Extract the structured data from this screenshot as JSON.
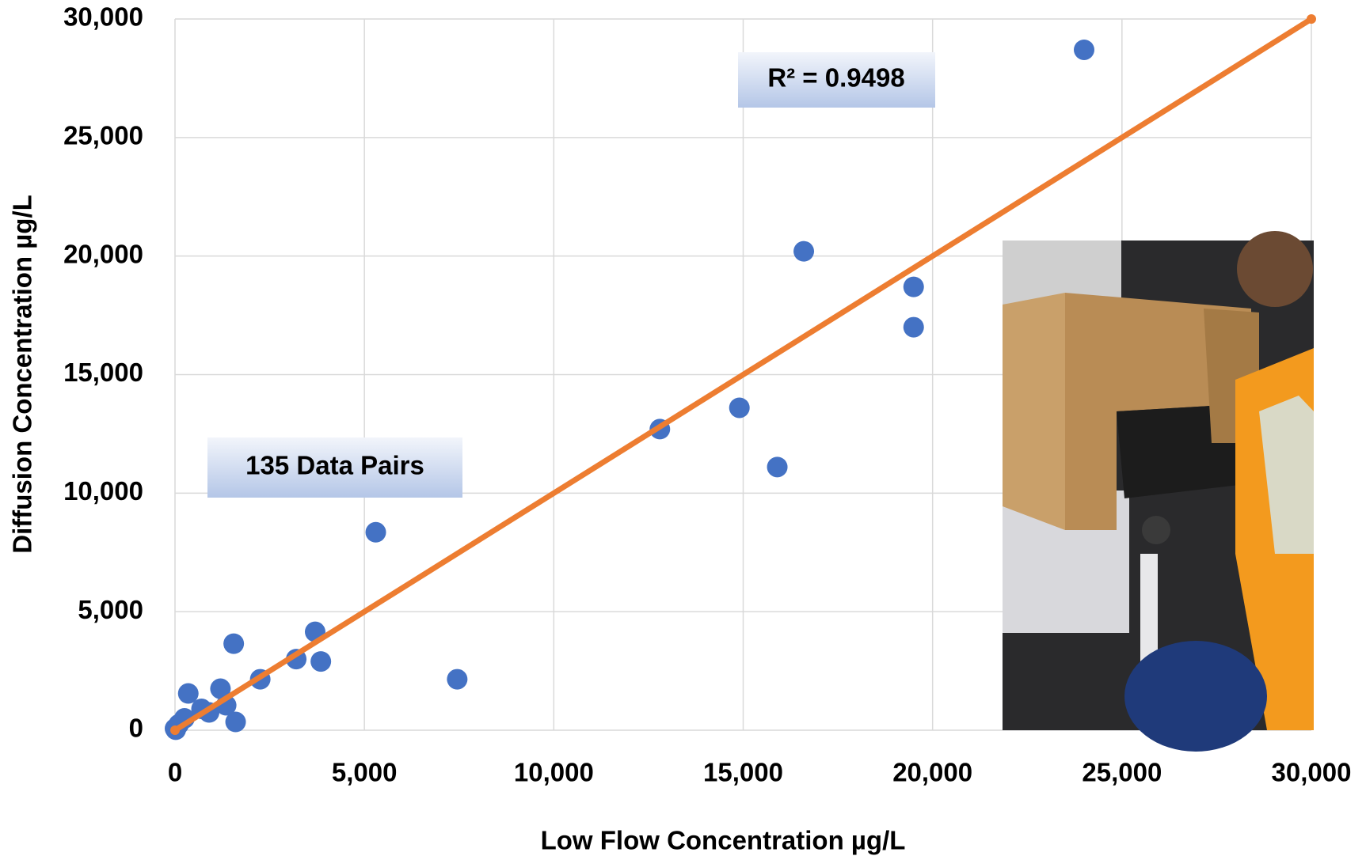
{
  "chart_data": {
    "type": "scatter",
    "x_label": "Low Flow Concentration µg/L",
    "y_label": "Diffusion Concentration µg/L",
    "annotations": [
      "R² = 0.9498",
      "135 Data Pairs"
    ],
    "xlim": [
      0,
      30000
    ],
    "ylim": [
      0,
      30000
    ],
    "xticks": [
      0,
      {
        "value": 5000,
        "label": "5,000"
      },
      {
        "value": 10000,
        "label": "10,000"
      },
      {
        "value": 15000,
        "label": "15,000"
      },
      {
        "value": 20000,
        "label": "20,000"
      },
      {
        "value": 25000,
        "label": "25,000"
      },
      {
        "value": 30000,
        "label": "30,000"
      }
    ],
    "yticks": [
      0,
      {
        "value": 5000,
        "label": "5,000"
      },
      {
        "value": 10000,
        "label": "10,000"
      },
      {
        "value": 15000,
        "label": "15,000"
      },
      {
        "value": 20000,
        "label": "20,000"
      },
      {
        "value": 25000,
        "label": "25,000"
      },
      {
        "value": 30000,
        "label": "30,000"
      }
    ],
    "grid": true,
    "series": [
      {
        "color": "#4472c4",
        "x": [
          24000,
          16600,
          19500,
          19500,
          14900,
          15900,
          12800,
          5300,
          7450,
          3700,
          3850,
          3200,
          1550,
          2250,
          1600,
          350,
          1200,
          900,
          1350,
          700,
          100,
          0,
          250,
          20
        ],
        "values": [
          28700,
          20200,
          18700,
          17000,
          13600,
          11100,
          12700,
          8350,
          2150,
          4150,
          2900,
          3000,
          3650,
          2150,
          350,
          1550,
          1750,
          750,
          1050,
          900,
          250,
          70,
          500,
          20
        ]
      }
    ],
    "trendline": {
      "color": "#ed7d31",
      "x": [
        0,
        30000
      ],
      "y": [
        0,
        30000
      ]
    }
  }
}
